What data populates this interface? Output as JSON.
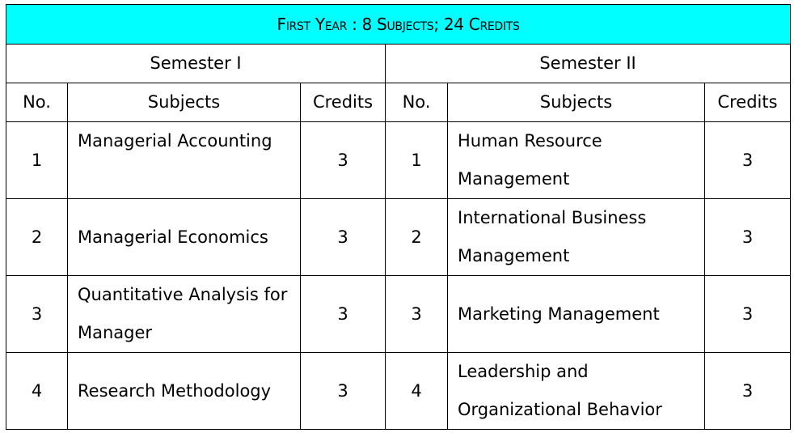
{
  "title": "First Year : 8 Subjects; 24 Credits",
  "semesters": [
    {
      "label": "Semester I",
      "headers": {
        "no": "No.",
        "subjects": "Subjects",
        "credits": "Credits"
      },
      "rows": [
        {
          "no": "1",
          "subject": "Managerial Accounting",
          "credits": "3"
        },
        {
          "no": "2",
          "subject": "Managerial Economics",
          "credits": "3"
        },
        {
          "no": "3",
          "subject": "Quantitative Analysis for Manager",
          "credits": "3"
        },
        {
          "no": "4",
          "subject": "Research Methodology",
          "credits": "3"
        }
      ]
    },
    {
      "label": "Semester II",
      "headers": {
        "no": "No.",
        "subjects": "Subjects",
        "credits": "Credits"
      },
      "rows": [
        {
          "no": "1",
          "subject": "Human Resource Management",
          "credits": "3"
        },
        {
          "no": "2",
          "subject": "International Business Management",
          "credits": "3"
        },
        {
          "no": "3",
          "subject": "Marketing Management",
          "credits": "3"
        },
        {
          "no": "4",
          "subject": "Leadership and Organizational Behavior",
          "credits": "3"
        }
      ]
    }
  ],
  "colors": {
    "title_background": "#00ffff",
    "border": "#000000"
  }
}
